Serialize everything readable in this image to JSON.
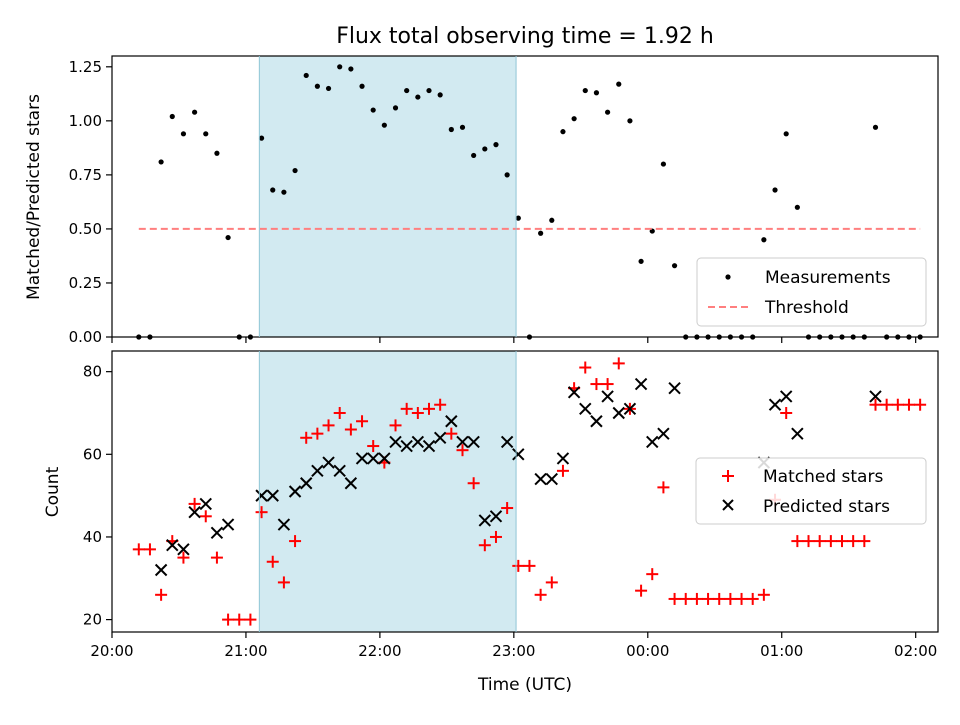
{
  "title": "Flux total observing time = 1.92 h",
  "chart_data": [
    {
      "type": "scatter",
      "ylabel": "Matched/Predicted stars",
      "xlabel": "",
      "x_axis": "time",
      "xlim": [
        "20:00",
        "02:10"
      ],
      "ylim": [
        0,
        1.3
      ],
      "x_ticks": [
        "20:00",
        "21:00",
        "22:00",
        "23:00",
        "00:00",
        "01:00",
        "02:00"
      ],
      "y_ticks": [
        0.0,
        0.25,
        0.5,
        0.75,
        1.0,
        1.25
      ],
      "y_tick_labels": [
        "0.00",
        "0.25",
        "0.50",
        "0.75",
        "1.00",
        "1.25"
      ],
      "shaded_span": {
        "x_start": "21:06",
        "x_end": "23:01",
        "color": "#add8e6"
      },
      "legend": {
        "position": "lower right",
        "entries": [
          "Measurements",
          "Threshold"
        ]
      },
      "series": [
        {
          "name": "Measurements",
          "marker": "dot",
          "color": "#000000",
          "points": [
            [
              "20:12",
              0.0
            ],
            [
              "20:17",
              0.0
            ],
            [
              "20:22",
              0.81
            ],
            [
              "20:27",
              1.02
            ],
            [
              "20:32",
              0.94
            ],
            [
              "20:37",
              1.04
            ],
            [
              "20:42",
              0.94
            ],
            [
              "20:47",
              0.85
            ],
            [
              "20:52",
              0.46
            ],
            [
              "20:57",
              0.0
            ],
            [
              "21:02",
              0.0
            ],
            [
              "21:07",
              0.92
            ],
            [
              "21:12",
              0.68
            ],
            [
              "21:17",
              0.67
            ],
            [
              "21:22",
              0.77
            ],
            [
              "21:27",
              1.21
            ],
            [
              "21:32",
              1.16
            ],
            [
              "21:37",
              1.15
            ],
            [
              "21:42",
              1.25
            ],
            [
              "21:47",
              1.24
            ],
            [
              "21:52",
              1.16
            ],
            [
              "21:57",
              1.05
            ],
            [
              "22:02",
              0.98
            ],
            [
              "22:07",
              1.06
            ],
            [
              "22:12",
              1.14
            ],
            [
              "22:17",
              1.11
            ],
            [
              "22:22",
              1.14
            ],
            [
              "22:27",
              1.12
            ],
            [
              "22:32",
              0.96
            ],
            [
              "22:37",
              0.97
            ],
            [
              "22:42",
              0.84
            ],
            [
              "22:47",
              0.87
            ],
            [
              "22:52",
              0.89
            ],
            [
              "22:57",
              0.75
            ],
            [
              "23:02",
              0.55
            ],
            [
              "23:07",
              0.0
            ],
            [
              "23:12",
              0.48
            ],
            [
              "23:17",
              0.54
            ],
            [
              "23:22",
              0.95
            ],
            [
              "23:27",
              1.01
            ],
            [
              "23:32",
              1.14
            ],
            [
              "23:37",
              1.13
            ],
            [
              "23:42",
              1.04
            ],
            [
              "23:47",
              1.17
            ],
            [
              "23:52",
              1.0
            ],
            [
              "23:57",
              0.35
            ],
            [
              "00:02",
              0.49
            ],
            [
              "00:07",
              0.8
            ],
            [
              "00:12",
              0.33
            ],
            [
              "00:17",
              0.0
            ],
            [
              "00:22",
              0.0
            ],
            [
              "00:27",
              0.0
            ],
            [
              "00:32",
              0.0
            ],
            [
              "00:37",
              0.0
            ],
            [
              "00:42",
              0.0
            ],
            [
              "00:47",
              0.0
            ],
            [
              "00:52",
              0.45
            ],
            [
              "00:57",
              0.68
            ],
            [
              "01:02",
              0.94
            ],
            [
              "01:07",
              0.6
            ],
            [
              "01:12",
              0.0
            ],
            [
              "01:17",
              0.0
            ],
            [
              "01:22",
              0.0
            ],
            [
              "01:27",
              0.0
            ],
            [
              "01:32",
              0.0
            ],
            [
              "01:37",
              0.0
            ],
            [
              "01:42",
              0.97
            ],
            [
              "01:47",
              0.0
            ],
            [
              "01:52",
              0.0
            ],
            [
              "01:57",
              0.0
            ],
            [
              "02:02",
              0.0
            ]
          ]
        },
        {
          "name": "Threshold",
          "style": "dashed",
          "color": "#ff7f7f",
          "points": [
            [
              "20:12",
              0.5
            ],
            [
              "02:02",
              0.5
            ]
          ]
        }
      ]
    },
    {
      "type": "scatter",
      "ylabel": "Count",
      "xlabel": "Time (UTC)",
      "x_axis": "time",
      "xlim": [
        "20:00",
        "02:10"
      ],
      "ylim": [
        17,
        85
      ],
      "x_ticks": [
        "20:00",
        "21:00",
        "22:00",
        "23:00",
        "00:00",
        "01:00",
        "02:00"
      ],
      "y_ticks": [
        20,
        40,
        60,
        80
      ],
      "y_tick_labels": [
        "20",
        "40",
        "60",
        "80"
      ],
      "shaded_span": {
        "x_start": "21:06",
        "x_end": "23:01",
        "color": "#add8e6"
      },
      "legend": {
        "position": "center right",
        "entries": [
          "Matched stars",
          "Predicted stars"
        ]
      },
      "series": [
        {
          "name": "Matched stars",
          "marker": "plus",
          "color": "#ff0000",
          "points": [
            [
              "20:12",
              37
            ],
            [
              "20:17",
              37
            ],
            [
              "20:22",
              26
            ],
            [
              "20:27",
              39
            ],
            [
              "20:32",
              35
            ],
            [
              "20:37",
              48
            ],
            [
              "20:42",
              45
            ],
            [
              "20:47",
              35
            ],
            [
              "20:52",
              20
            ],
            [
              "20:57",
              20
            ],
            [
              "21:02",
              20
            ],
            [
              "21:07",
              46
            ],
            [
              "21:12",
              34
            ],
            [
              "21:17",
              29
            ],
            [
              "21:22",
              39
            ],
            [
              "21:27",
              64
            ],
            [
              "21:32",
              65
            ],
            [
              "21:37",
              67
            ],
            [
              "21:42",
              70
            ],
            [
              "21:47",
              66
            ],
            [
              "21:52",
              68
            ],
            [
              "21:57",
              62
            ],
            [
              "22:02",
              58
            ],
            [
              "22:07",
              67
            ],
            [
              "22:12",
              71
            ],
            [
              "22:17",
              70
            ],
            [
              "22:22",
              71
            ],
            [
              "22:27",
              72
            ],
            [
              "22:32",
              65
            ],
            [
              "22:37",
              61
            ],
            [
              "22:42",
              53
            ],
            [
              "22:47",
              38
            ],
            [
              "22:52",
              40
            ],
            [
              "22:57",
              47
            ],
            [
              "23:02",
              33
            ],
            [
              "23:07",
              33
            ],
            [
              "23:12",
              26
            ],
            [
              "23:17",
              29
            ],
            [
              "23:22",
              56
            ],
            [
              "23:27",
              76
            ],
            [
              "23:32",
              81
            ],
            [
              "23:37",
              77
            ],
            [
              "23:42",
              77
            ],
            [
              "23:47",
              82
            ],
            [
              "23:52",
              71
            ],
            [
              "23:57",
              27
            ],
            [
              "00:02",
              31
            ],
            [
              "00:07",
              52
            ],
            [
              "00:12",
              25
            ],
            [
              "00:17",
              25
            ],
            [
              "00:22",
              25
            ],
            [
              "00:27",
              25
            ],
            [
              "00:32",
              25
            ],
            [
              "00:37",
              25
            ],
            [
              "00:42",
              25
            ],
            [
              "00:47",
              25
            ],
            [
              "00:52",
              26
            ],
            [
              "00:57",
              49
            ],
            [
              "01:02",
              70
            ],
            [
              "01:07",
              39
            ],
            [
              "01:12",
              39
            ],
            [
              "01:17",
              39
            ],
            [
              "01:22",
              39
            ],
            [
              "01:27",
              39
            ],
            [
              "01:32",
              39
            ],
            [
              "01:37",
              39
            ],
            [
              "01:42",
              72
            ],
            [
              "01:47",
              72
            ],
            [
              "01:52",
              72
            ],
            [
              "01:57",
              72
            ],
            [
              "02:02",
              72
            ]
          ]
        },
        {
          "name": "Predicted stars",
          "marker": "x",
          "color": "#000000",
          "points": [
            [
              "20:22",
              32
            ],
            [
              "20:27",
              38
            ],
            [
              "20:32",
              37
            ],
            [
              "20:37",
              46
            ],
            [
              "20:42",
              48
            ],
            [
              "20:47",
              41
            ],
            [
              "20:52",
              43
            ],
            [
              "21:07",
              50
            ],
            [
              "21:12",
              50
            ],
            [
              "21:17",
              43
            ],
            [
              "21:22",
              51
            ],
            [
              "21:27",
              53
            ],
            [
              "21:32",
              56
            ],
            [
              "21:37",
              58
            ],
            [
              "21:42",
              56
            ],
            [
              "21:47",
              53
            ],
            [
              "21:52",
              59
            ],
            [
              "21:57",
              59
            ],
            [
              "22:02",
              59
            ],
            [
              "22:07",
              63
            ],
            [
              "22:12",
              62
            ],
            [
              "22:17",
              63
            ],
            [
              "22:22",
              62
            ],
            [
              "22:27",
              64
            ],
            [
              "22:32",
              68
            ],
            [
              "22:37",
              63
            ],
            [
              "22:42",
              63
            ],
            [
              "22:47",
              44
            ],
            [
              "22:52",
              45
            ],
            [
              "22:57",
              63
            ],
            [
              "23:02",
              60
            ],
            [
              "23:12",
              54
            ],
            [
              "23:17",
              54
            ],
            [
              "23:22",
              59
            ],
            [
              "23:27",
              75
            ],
            [
              "23:32",
              71
            ],
            [
              "23:37",
              68
            ],
            [
              "23:42",
              74
            ],
            [
              "23:47",
              70
            ],
            [
              "23:52",
              71
            ],
            [
              "23:57",
              77
            ],
            [
              "00:02",
              63
            ],
            [
              "00:07",
              65
            ],
            [
              "00:12",
              76
            ],
            [
              "00:52",
              58
            ],
            [
              "00:57",
              72
            ],
            [
              "01:02",
              74
            ],
            [
              "01:07",
              65
            ],
            [
              "01:42",
              74
            ]
          ]
        }
      ]
    }
  ]
}
